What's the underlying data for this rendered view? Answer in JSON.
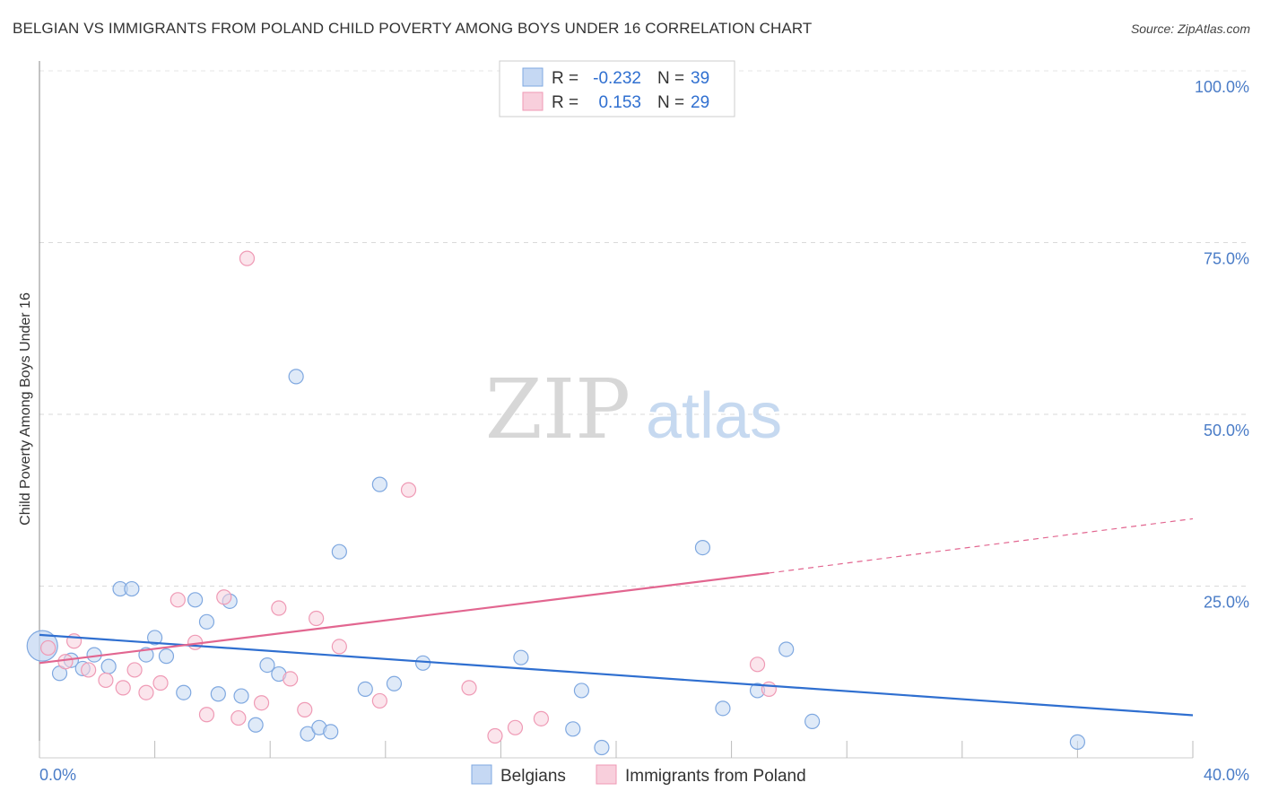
{
  "header": {
    "title": "BELGIAN VS IMMIGRANTS FROM POLAND CHILD POVERTY AMONG BOYS UNDER 16 CORRELATION CHART",
    "source": "Source: ZipAtlas.com"
  },
  "watermark": {
    "zip": "ZIP",
    "atlas": "atlas"
  },
  "chart_data": {
    "type": "scatter",
    "ylabel": "Child Poverty Among Boys Under 16",
    "xlim": [
      0,
      40
    ],
    "ylim": [
      0,
      100
    ],
    "x_tick_labels": [
      "0.0%",
      "40.0%"
    ],
    "y_ticks": [
      {
        "value": 100,
        "label": "100.0%"
      },
      {
        "value": 75,
        "label": "75.0%"
      },
      {
        "value": 50,
        "label": "50.0%"
      },
      {
        "value": 25,
        "label": "25.0%"
      }
    ],
    "legend": [
      {
        "r_label": "R =",
        "r_value": "-0.232",
        "n_label": "N =",
        "n_value": "39"
      },
      {
        "r_label": "R =",
        "r_value": "0.153",
        "n_label": "N =",
        "n_value": "29"
      }
    ],
    "series": [
      {
        "name": "Belgians",
        "color": "#7fa8e0",
        "fill": "#c5d8f3",
        "line_color": "#2f6fd0",
        "trend": {
          "x0": 0,
          "y0": 17.9,
          "x1": 40,
          "y1": 6.2
        },
        "points": [
          [
            0.1,
            16.3
          ],
          [
            0.7,
            12.3
          ],
          [
            1.1,
            14.2
          ],
          [
            1.5,
            13.0
          ],
          [
            1.9,
            15.0
          ],
          [
            2.4,
            13.3
          ],
          [
            2.8,
            24.6
          ],
          [
            3.2,
            24.6
          ],
          [
            3.7,
            15.0
          ],
          [
            4.0,
            17.5
          ],
          [
            4.4,
            14.8
          ],
          [
            5.0,
            9.5
          ],
          [
            5.4,
            23.0
          ],
          [
            5.8,
            19.8
          ],
          [
            6.2,
            9.3
          ],
          [
            6.6,
            22.8
          ],
          [
            7.0,
            9.0
          ],
          [
            7.5,
            4.8
          ],
          [
            7.9,
            13.5
          ],
          [
            8.3,
            12.2
          ],
          [
            8.9,
            55.5
          ],
          [
            9.3,
            3.5
          ],
          [
            9.7,
            4.4
          ],
          [
            10.1,
            3.8
          ],
          [
            10.4,
            30.0
          ],
          [
            11.3,
            10.0
          ],
          [
            11.8,
            39.8
          ],
          [
            12.3,
            10.8
          ],
          [
            13.3,
            13.8
          ],
          [
            16.7,
            14.6
          ],
          [
            18.5,
            4.2
          ],
          [
            18.8,
            9.8
          ],
          [
            19.5,
            1.5
          ],
          [
            23.0,
            30.6
          ],
          [
            23.7,
            7.2
          ],
          [
            24.9,
            9.8
          ],
          [
            25.9,
            15.8
          ],
          [
            26.8,
            5.3
          ],
          [
            36.0,
            2.3
          ]
        ]
      },
      {
        "name": "Immigrants from Poland",
        "color": "#ef9ab5",
        "fill": "#f8cfdc",
        "line_color": "#e26690",
        "trend": {
          "x0": 0,
          "y0": 13.8,
          "x1": 25.3,
          "y1": 26.9
        },
        "trend_dashed": {
          "x0": 25.3,
          "y0": 26.9,
          "x1": 40,
          "y1": 34.8
        },
        "points": [
          [
            0.3,
            16.0
          ],
          [
            0.9,
            14.0
          ],
          [
            1.2,
            17.0
          ],
          [
            1.7,
            12.8
          ],
          [
            2.3,
            11.3
          ],
          [
            2.9,
            10.2
          ],
          [
            3.3,
            12.8
          ],
          [
            3.7,
            9.5
          ],
          [
            4.2,
            10.9
          ],
          [
            4.8,
            23.0
          ],
          [
            5.4,
            16.8
          ],
          [
            5.8,
            6.3
          ],
          [
            6.4,
            23.4
          ],
          [
            6.9,
            5.8
          ],
          [
            7.2,
            72.7
          ],
          [
            7.7,
            8.0
          ],
          [
            8.3,
            21.8
          ],
          [
            8.7,
            11.5
          ],
          [
            9.2,
            7.0
          ],
          [
            9.6,
            20.3
          ],
          [
            10.4,
            16.2
          ],
          [
            11.8,
            8.3
          ],
          [
            12.8,
            39.0
          ],
          [
            14.9,
            10.2
          ],
          [
            15.8,
            3.2
          ],
          [
            16.5,
            4.4
          ],
          [
            17.4,
            5.7
          ],
          [
            24.9,
            13.6
          ],
          [
            25.3,
            10.0
          ]
        ]
      }
    ]
  }
}
